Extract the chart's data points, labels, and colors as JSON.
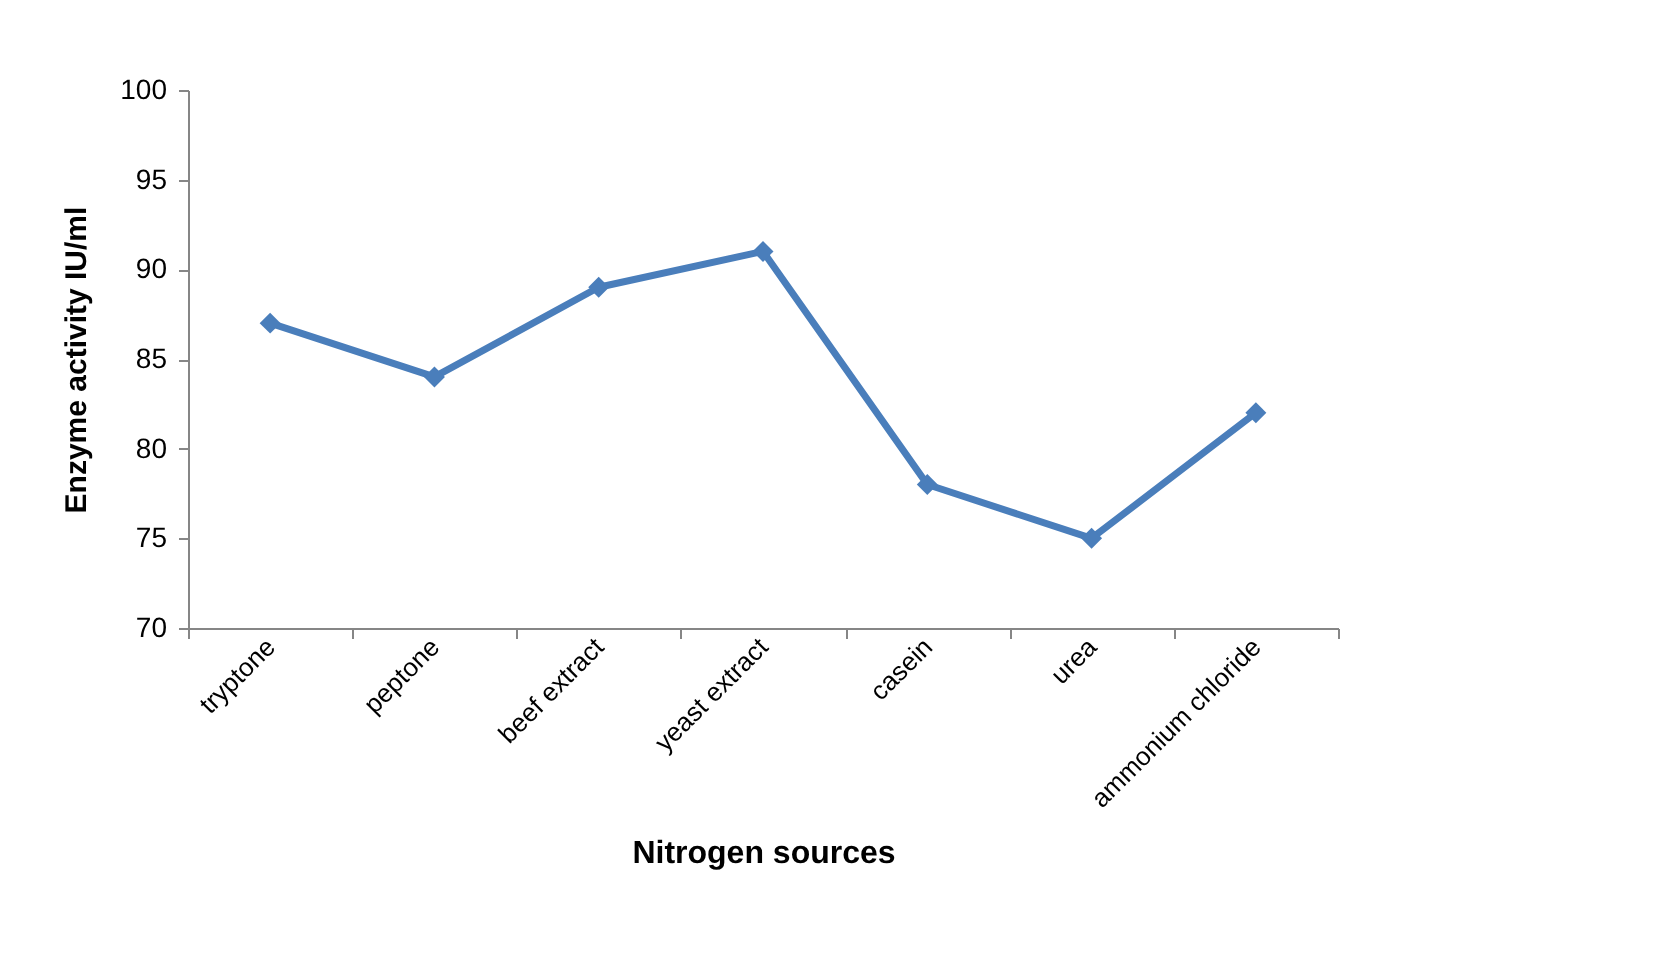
{
  "chart_data": {
    "type": "line",
    "xlabel": "Nitrogen sources",
    "ylabel": "Enzyme  activity IU/ml",
    "categories": [
      "tryptone",
      "peptone",
      "beef extract",
      "yeast extract",
      "casein",
      "urea",
      "ammonium chloride"
    ],
    "series": [
      {
        "color": "#4a7ebb",
        "values": [
          87,
          84,
          89,
          91,
          78,
          75,
          82
        ]
      }
    ],
    "ylim": [
      70,
      100
    ],
    "yticks": [
      70,
      75,
      80,
      85,
      90,
      95,
      100
    ],
    "grid": false,
    "marker": "diamond",
    "line_style": "solid"
  }
}
